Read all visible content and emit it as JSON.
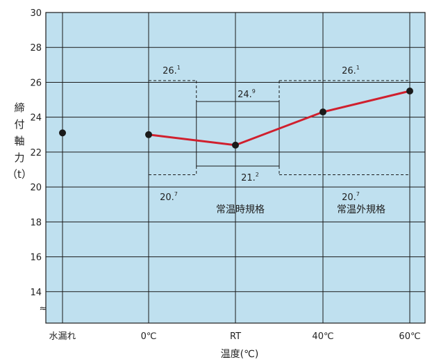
{
  "chart_data": {
    "type": "line",
    "categories": [
      "水漏れ",
      "0℃",
      "RT",
      "40℃",
      "60℃"
    ],
    "series": [
      {
        "values": [
          23.1,
          23.0,
          22.4,
          24.3,
          25.5
        ],
        "connected_from": 1,
        "color": "#d0202e"
      }
    ],
    "ylim": [
      12.2,
      30
    ],
    "yticks": [
      "14",
      "16",
      "18",
      "20",
      "22",
      "24",
      "26",
      "28",
      "30"
    ],
    "axis_break_symbol": "≈",
    "ylabel_chars": [
      "締",
      "付",
      "軸",
      "力",
      "（t）"
    ],
    "xlabel": "温度(℃)",
    "spec_lines": [
      {
        "label_base": "26.",
        "label_sup": "1",
        "value": 26.1,
        "from": 1,
        "to": 1.55,
        "style": "dashed"
      },
      {
        "label_base": "20.",
        "label_sup": "7",
        "value": 20.7,
        "from": 1,
        "to": 1.55,
        "style": "dashed"
      },
      {
        "label_base": "24.",
        "label_sup": "9",
        "value": 24.9,
        "from": 1.55,
        "to": 2.5,
        "style": "solid"
      },
      {
        "label_base": "21.",
        "label_sup": "2",
        "value": 21.2,
        "from": 1.55,
        "to": 2.5,
        "style": "solid"
      },
      {
        "label_base": "26.",
        "label_sup": "1",
        "value": 26.1,
        "from": 2.5,
        "to": 4,
        "style": "dashed"
      },
      {
        "label_base": "20.",
        "label_sup": "7",
        "value": 20.7,
        "from": 2.5,
        "to": 4,
        "style": "dashed"
      }
    ],
    "regions": [
      "常温時規格",
      "常温外規格"
    ],
    "background_color": "#bfe0ef",
    "grid": true
  }
}
